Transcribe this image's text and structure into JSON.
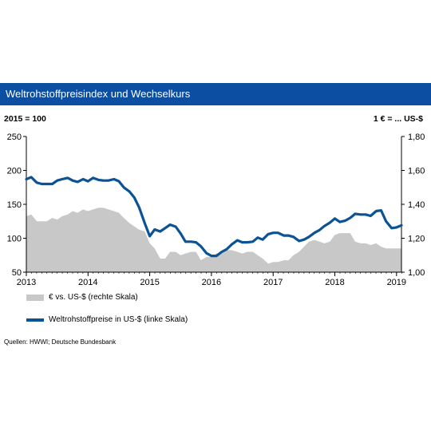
{
  "header": {
    "title": "Weltrohstoffpreisindex und Wechselkurs",
    "left_unit": "2015 = 100",
    "right_unit": "1 € = ... US-$"
  },
  "legend": {
    "area_label": "€ vs. US-$ (rechte Skala)",
    "line_label": "Weltrohstoffpreise in US-$ (linke Skala)"
  },
  "source": "Quellen: HWWI; Deutsche Bundesbank",
  "colors": {
    "header_bg": "#0b4ea2",
    "line": "#0b5394",
    "area": "#c8c8c8"
  },
  "chart_data": {
    "type": "line",
    "x_label_years": [
      "2013",
      "2014",
      "2015",
      "2016",
      "2017",
      "2018",
      "2019"
    ],
    "left_axis": {
      "ticks": [
        "50",
        "100",
        "150",
        "200",
        "250"
      ],
      "ylim": [
        50,
        250
      ]
    },
    "right_axis": {
      "ticks": [
        "1,00",
        "1,20",
        "1,40",
        "1,60",
        "1,80"
      ],
      "ylim": [
        1.0,
        1.8
      ]
    },
    "x_start": 2013.0,
    "x_end": 2019.08,
    "series": [
      {
        "name": "€ vs. US-$ (rechte Skala)",
        "kind": "area",
        "axis": "right",
        "x": [
          2013.0,
          2013.08,
          2013.17,
          2013.25,
          2013.33,
          2013.42,
          2013.5,
          2013.58,
          2013.67,
          2013.75,
          2013.83,
          2013.92,
          2014.0,
          2014.08,
          2014.17,
          2014.25,
          2014.33,
          2014.42,
          2014.5,
          2014.58,
          2014.67,
          2014.75,
          2014.83,
          2014.92,
          2015.0,
          2015.08,
          2015.17,
          2015.25,
          2015.33,
          2015.42,
          2015.5,
          2015.58,
          2015.67,
          2015.75,
          2015.83,
          2015.92,
          2016.0,
          2016.08,
          2016.17,
          2016.25,
          2016.33,
          2016.42,
          2016.5,
          2016.58,
          2016.67,
          2016.75,
          2016.83,
          2016.92,
          2017.0,
          2017.08,
          2017.17,
          2017.25,
          2017.33,
          2017.42,
          2017.5,
          2017.58,
          2017.67,
          2017.75,
          2017.83,
          2017.92,
          2018.0,
          2018.08,
          2018.17,
          2018.25,
          2018.33,
          2018.42,
          2018.5,
          2018.58,
          2018.67,
          2018.75,
          2018.83,
          2018.92,
          2019.0,
          2019.08
        ],
        "values": [
          1.33,
          1.34,
          1.3,
          1.3,
          1.3,
          1.32,
          1.31,
          1.33,
          1.34,
          1.36,
          1.35,
          1.37,
          1.36,
          1.37,
          1.38,
          1.38,
          1.37,
          1.36,
          1.35,
          1.32,
          1.29,
          1.27,
          1.25,
          1.24,
          1.17,
          1.14,
          1.08,
          1.08,
          1.12,
          1.12,
          1.1,
          1.11,
          1.12,
          1.12,
          1.07,
          1.09,
          1.09,
          1.11,
          1.11,
          1.13,
          1.13,
          1.12,
          1.11,
          1.12,
          1.12,
          1.1,
          1.08,
          1.05,
          1.06,
          1.06,
          1.07,
          1.07,
          1.1,
          1.12,
          1.15,
          1.18,
          1.19,
          1.18,
          1.17,
          1.18,
          1.22,
          1.23,
          1.23,
          1.23,
          1.18,
          1.17,
          1.17,
          1.16,
          1.17,
          1.15,
          1.14,
          1.14,
          1.14,
          1.14
        ]
      },
      {
        "name": "Weltrohstoffpreise in US-$ (linke Skala)",
        "kind": "line",
        "axis": "left",
        "x": [
          2013.0,
          2013.08,
          2013.17,
          2013.25,
          2013.33,
          2013.42,
          2013.5,
          2013.58,
          2013.67,
          2013.75,
          2013.83,
          2013.92,
          2014.0,
          2014.08,
          2014.17,
          2014.25,
          2014.33,
          2014.42,
          2014.5,
          2014.58,
          2014.67,
          2014.75,
          2014.83,
          2014.92,
          2015.0,
          2015.08,
          2015.17,
          2015.25,
          2015.33,
          2015.42,
          2015.5,
          2015.58,
          2015.67,
          2015.75,
          2015.83,
          2015.92,
          2016.0,
          2016.08,
          2016.17,
          2016.25,
          2016.33,
          2016.42,
          2016.5,
          2016.58,
          2016.67,
          2016.75,
          2016.83,
          2016.92,
          2017.0,
          2017.08,
          2017.17,
          2017.25,
          2017.33,
          2017.42,
          2017.5,
          2017.58,
          2017.67,
          2017.75,
          2017.83,
          2017.92,
          2018.0,
          2018.08,
          2018.17,
          2018.25,
          2018.33,
          2018.42,
          2018.5,
          2018.58,
          2018.67,
          2018.75,
          2018.83,
          2018.92,
          2019.0,
          2019.08
        ],
        "values": [
          187,
          190,
          182,
          180,
          180,
          180,
          185,
          187,
          189,
          185,
          183,
          187,
          184,
          189,
          186,
          185,
          185,
          187,
          184,
          175,
          169,
          160,
          145,
          122,
          103,
          113,
          110,
          115,
          120,
          117,
          107,
          95,
          95,
          94,
          88,
          78,
          74,
          74,
          80,
          84,
          91,
          97,
          94,
          94,
          95,
          101,
          98,
          106,
          108,
          108,
          104,
          104,
          102,
          96,
          98,
          102,
          108,
          112,
          118,
          123,
          129,
          124,
          126,
          130,
          136,
          135,
          135,
          133,
          140,
          141,
          125,
          115,
          116,
          119
        ]
      }
    ]
  }
}
